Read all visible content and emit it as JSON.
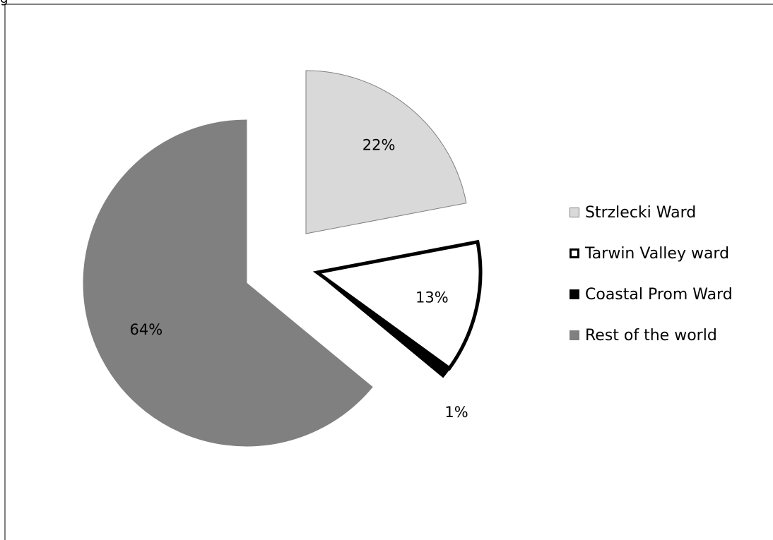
{
  "header_fragment": "g",
  "chart_data": {
    "type": "pie",
    "exploded": true,
    "legend_position": "right",
    "categories": [
      "Strzlecki Ward",
      "Tarwin Valley ward",
      "Coastal Prom Ward",
      "Rest of the world"
    ],
    "values": [
      22,
      13,
      1,
      64
    ],
    "data_labels": [
      "22%",
      "13%",
      "1%",
      "64%"
    ],
    "colors": [
      "#d9d9d9",
      "#ffffff",
      "#000000",
      "#808080"
    ],
    "outline_colors": [
      "#808080",
      "#000000",
      "#000000",
      "#808080"
    ]
  }
}
